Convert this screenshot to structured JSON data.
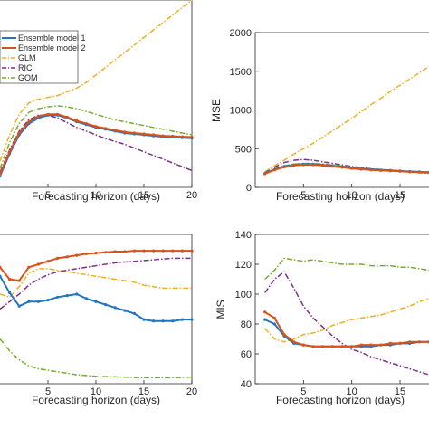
{
  "colors": {
    "Ensemble model 1": "#1f77c4",
    "Ensemble model 2": "#d95319",
    "GLM": "#edb120",
    "RIC": "#7e2f8e",
    "GOM": "#77ac30"
  },
  "legend": [
    "Ensemble model 1",
    "Ensemble model 2",
    "GLM",
    "RIC",
    "GOM"
  ],
  "chart_data": [
    {
      "type": "line",
      "xlabel": "Forecasting horizon (days)",
      "ylabel": "",
      "xlim": [
        0,
        20
      ],
      "ylim": [
        0,
        1
      ],
      "xticks": [
        5,
        10,
        15,
        20
      ],
      "yticks": [],
      "grid": false,
      "legend": "top-left",
      "series": [
        {
          "name": "Ensemble model 1",
          "style": "solid-marker",
          "x": [
            0,
            1,
            2,
            3,
            4,
            5,
            6,
            7,
            8,
            9,
            10,
            11,
            12,
            13,
            14,
            15,
            16,
            17,
            18,
            19,
            20
          ],
          "y": [
            0.06,
            0.18,
            0.28,
            0.34,
            0.37,
            0.385,
            0.385,
            0.37,
            0.35,
            0.335,
            0.32,
            0.31,
            0.3,
            0.29,
            0.285,
            0.28,
            0.275,
            0.27,
            0.268,
            0.265,
            0.262
          ]
        },
        {
          "name": "Ensemble model 2",
          "style": "solid-marker",
          "x": [
            0,
            1,
            2,
            3,
            4,
            5,
            6,
            7,
            8,
            9,
            10,
            11,
            12,
            13,
            14,
            15,
            16,
            17,
            18,
            19,
            20
          ],
          "y": [
            0.07,
            0.19,
            0.29,
            0.35,
            0.38,
            0.39,
            0.39,
            0.375,
            0.355,
            0.34,
            0.325,
            0.315,
            0.305,
            0.295,
            0.29,
            0.285,
            0.28,
            0.275,
            0.273,
            0.27,
            0.268
          ]
        },
        {
          "name": "GLM",
          "style": "dashdot",
          "x": [
            0,
            1,
            2,
            3,
            4,
            5,
            6,
            7,
            8,
            9,
            10,
            11,
            12,
            13,
            14,
            15,
            16,
            17,
            18,
            19,
            20
          ],
          "y": [
            0.14,
            0.28,
            0.39,
            0.45,
            0.47,
            0.48,
            0.49,
            0.51,
            0.53,
            0.56,
            0.6,
            0.64,
            0.68,
            0.72,
            0.76,
            0.8,
            0.84,
            0.88,
            0.92,
            0.96,
            1.0
          ]
        },
        {
          "name": "RIC",
          "style": "dashdot",
          "x": [
            0,
            1,
            2,
            3,
            4,
            5,
            6,
            7,
            8,
            9,
            10,
            11,
            12,
            13,
            14,
            15,
            16,
            17,
            18,
            19,
            20
          ],
          "y": [
            0.08,
            0.2,
            0.3,
            0.36,
            0.385,
            0.385,
            0.37,
            0.345,
            0.32,
            0.3,
            0.28,
            0.26,
            0.245,
            0.23,
            0.21,
            0.19,
            0.17,
            0.15,
            0.13,
            0.11,
            0.09
          ]
        },
        {
          "name": "GOM",
          "style": "dashdot",
          "x": [
            0,
            1,
            2,
            3,
            4,
            5,
            6,
            7,
            8,
            9,
            10,
            11,
            12,
            13,
            14,
            15,
            16,
            17,
            18,
            19,
            20
          ],
          "y": [
            0.1,
            0.24,
            0.34,
            0.4,
            0.42,
            0.43,
            0.435,
            0.43,
            0.42,
            0.405,
            0.39,
            0.375,
            0.36,
            0.35,
            0.34,
            0.33,
            0.32,
            0.31,
            0.3,
            0.29,
            0.28
          ]
        }
      ]
    },
    {
      "type": "line",
      "xlabel": "Forecasting horizon (days)",
      "ylabel": "MSE",
      "xlim": [
        0,
        18
      ],
      "ylim": [
        0,
        2000
      ],
      "xticks": [
        5,
        10,
        15
      ],
      "yticks": [
        0,
        500,
        1000,
        1500,
        2000
      ],
      "grid": false,
      "series": [
        {
          "name": "Ensemble model 1",
          "style": "solid-marker",
          "x": [
            1,
            2,
            3,
            4,
            5,
            6,
            7,
            8,
            9,
            10,
            11,
            12,
            13,
            14,
            15,
            16,
            17,
            18
          ],
          "y": [
            180,
            230,
            270,
            290,
            300,
            300,
            290,
            280,
            265,
            250,
            240,
            230,
            225,
            220,
            212,
            205,
            200,
            195
          ]
        },
        {
          "name": "Ensemble model 2",
          "style": "solid-marker",
          "x": [
            1,
            2,
            3,
            4,
            5,
            6,
            7,
            8,
            9,
            10,
            11,
            12,
            13,
            14,
            15,
            16,
            17,
            18
          ],
          "y": [
            175,
            225,
            262,
            283,
            292,
            292,
            283,
            272,
            258,
            244,
            234,
            225,
            218,
            213,
            207,
            200,
            195,
            190
          ]
        },
        {
          "name": "GLM",
          "style": "dashdot",
          "x": [
            1,
            2,
            3,
            4,
            5,
            6,
            7,
            8,
            9,
            10,
            11,
            12,
            13,
            14,
            15,
            16,
            17,
            18
          ],
          "y": [
            200,
            280,
            350,
            430,
            500,
            570,
            650,
            730,
            810,
            890,
            980,
            1070,
            1150,
            1240,
            1320,
            1400,
            1480,
            1560
          ]
        },
        {
          "name": "RIC",
          "style": "dashdot",
          "x": [
            1,
            2,
            3,
            4,
            5,
            6,
            7,
            8,
            9,
            10,
            11,
            12,
            13,
            14,
            15,
            16,
            17,
            18
          ],
          "y": [
            190,
            260,
            320,
            350,
            360,
            350,
            330,
            310,
            290,
            270,
            255,
            240,
            230,
            220,
            210,
            200,
            190,
            182
          ]
        },
        {
          "name": "GOM",
          "style": "dashdot",
          "x": [
            1,
            2,
            3,
            4,
            5,
            6,
            7,
            8,
            9,
            10,
            11,
            12,
            13,
            14,
            15,
            16,
            17,
            18
          ],
          "y": [
            185,
            240,
            280,
            300,
            310,
            310,
            300,
            290,
            275,
            260,
            248,
            238,
            230,
            222,
            215,
            208,
            202,
            197
          ]
        }
      ]
    },
    {
      "type": "line",
      "xlabel": "Forecasting horizon (days)",
      "ylabel": "",
      "xlim": [
        0,
        20
      ],
      "ylim": [
        0,
        1
      ],
      "xticks": [
        5,
        10,
        15,
        20
      ],
      "yticks": [],
      "grid": false,
      "series": [
        {
          "name": "Ensemble model 1",
          "style": "solid-marker",
          "x": [
            0,
            1,
            2,
            3,
            4,
            5,
            6,
            7,
            8,
            9,
            10,
            11,
            12,
            13,
            14,
            15,
            16,
            17,
            18,
            19,
            20
          ],
          "y": [
            0.72,
            0.61,
            0.52,
            0.55,
            0.55,
            0.56,
            0.58,
            0.59,
            0.6,
            0.57,
            0.55,
            0.53,
            0.51,
            0.49,
            0.47,
            0.43,
            0.42,
            0.42,
            0.42,
            0.43,
            0.43
          ]
        },
        {
          "name": "Ensemble model 2",
          "style": "solid-marker",
          "x": [
            0,
            1,
            2,
            3,
            4,
            5,
            6,
            7,
            8,
            9,
            10,
            11,
            12,
            13,
            14,
            15,
            16,
            17,
            18,
            19,
            20
          ],
          "y": [
            0.78,
            0.7,
            0.69,
            0.78,
            0.8,
            0.82,
            0.84,
            0.85,
            0.86,
            0.87,
            0.875,
            0.88,
            0.885,
            0.885,
            0.89,
            0.89,
            0.89,
            0.89,
            0.89,
            0.89,
            0.89
          ]
        },
        {
          "name": "GLM",
          "style": "dashdot",
          "x": [
            0,
            1,
            2,
            3,
            4,
            5,
            6,
            7,
            8,
            9,
            10,
            11,
            12,
            13,
            14,
            15,
            16,
            17,
            18,
            19,
            20
          ],
          "y": [
            0.6,
            0.58,
            0.65,
            0.74,
            0.77,
            0.77,
            0.76,
            0.75,
            0.74,
            0.73,
            0.72,
            0.71,
            0.7,
            0.69,
            0.68,
            0.66,
            0.65,
            0.64,
            0.64,
            0.64,
            0.64
          ]
        },
        {
          "name": "RIC",
          "style": "dashdot",
          "x": [
            0,
            1,
            2,
            3,
            4,
            5,
            6,
            7,
            8,
            9,
            10,
            11,
            12,
            13,
            14,
            15,
            16,
            17,
            18,
            19,
            20
          ],
          "y": [
            0.5,
            0.55,
            0.6,
            0.66,
            0.7,
            0.73,
            0.75,
            0.76,
            0.77,
            0.78,
            0.79,
            0.8,
            0.81,
            0.815,
            0.82,
            0.825,
            0.83,
            0.835,
            0.84,
            0.84,
            0.84
          ]
        },
        {
          "name": "GOM",
          "style": "dashdot",
          "x": [
            0,
            1,
            2,
            3,
            4,
            5,
            6,
            7,
            8,
            9,
            10,
            11,
            12,
            13,
            14,
            15,
            16,
            17,
            18,
            19,
            20
          ],
          "y": [
            0.3,
            0.22,
            0.16,
            0.12,
            0.1,
            0.09,
            0.08,
            0.07,
            0.06,
            0.055,
            0.05,
            0.048,
            0.046,
            0.044,
            0.042,
            0.04,
            0.04,
            0.04,
            0.04,
            0.042,
            0.045
          ]
        }
      ]
    },
    {
      "type": "line",
      "xlabel": "Forecasting horizon (days)",
      "ylabel": "MIS",
      "xlim": [
        0,
        18
      ],
      "ylim": [
        40,
        140
      ],
      "xticks": [
        5,
        10,
        15
      ],
      "yticks": [
        40,
        60,
        80,
        100,
        120,
        140
      ],
      "grid": false,
      "series": [
        {
          "name": "Ensemble model 1",
          "style": "solid-marker",
          "x": [
            1,
            2,
            3,
            4,
            5,
            6,
            7,
            8,
            9,
            10,
            11,
            12,
            13,
            14,
            15,
            16,
            17,
            18
          ],
          "y": [
            83,
            80,
            72,
            67,
            66,
            65,
            65,
            65,
            65,
            65,
            65,
            65,
            66,
            66,
            67,
            67,
            68,
            68
          ]
        },
        {
          "name": "Ensemble model 2",
          "style": "solid-marker",
          "x": [
            1,
            2,
            3,
            4,
            5,
            6,
            7,
            8,
            9,
            10,
            11,
            12,
            13,
            14,
            15,
            16,
            17,
            18
          ],
          "y": [
            88,
            84,
            73,
            68,
            66,
            65,
            65,
            65,
            65,
            65,
            66,
            66,
            66,
            67,
            67,
            68,
            68,
            68
          ]
        },
        {
          "name": "GLM",
          "style": "dashdot",
          "x": [
            1,
            2,
            3,
            4,
            5,
            6,
            7,
            8,
            9,
            10,
            11,
            12,
            13,
            14,
            15,
            16,
            17,
            18
          ],
          "y": [
            77,
            70,
            68,
            70,
            73,
            74,
            76,
            79,
            81,
            83,
            84,
            85,
            86,
            88,
            90,
            92,
            95,
            97
          ]
        },
        {
          "name": "RIC",
          "style": "dashdot",
          "x": [
            1,
            2,
            3,
            4,
            5,
            6,
            7,
            8,
            9,
            10,
            11,
            12,
            13,
            14,
            15,
            16,
            17,
            18
          ],
          "y": [
            101,
            110,
            115,
            104,
            92,
            84,
            78,
            72,
            67,
            63,
            61,
            58,
            56,
            54,
            52,
            50,
            48,
            46
          ]
        },
        {
          "name": "GOM",
          "style": "dashdot",
          "x": [
            1,
            2,
            3,
            4,
            5,
            6,
            7,
            8,
            9,
            10,
            11,
            12,
            13,
            14,
            15,
            16,
            17,
            18
          ],
          "y": [
            110,
            116,
            124,
            123,
            122,
            123,
            122,
            121,
            120,
            120,
            120,
            119,
            119,
            119,
            118,
            118,
            117,
            116
          ]
        }
      ]
    }
  ]
}
